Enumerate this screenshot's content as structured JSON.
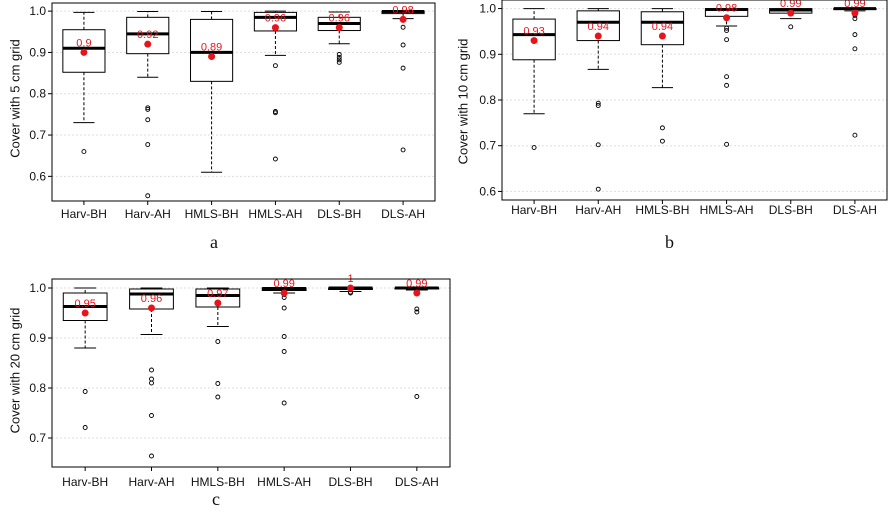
{
  "chart_data": [
    {
      "type": "box",
      "panel_letter": "a",
      "ylabel": "Cover with 5 cm grid",
      "ylim": [
        0.55,
        1.01
      ],
      "yticks": [
        "0.6",
        "0.7",
        "0.8",
        "0.9",
        "1.0"
      ],
      "ytick_values": [
        0.6,
        0.7,
        0.8,
        0.9,
        1.0
      ],
      "grid": true,
      "categories": [
        "Harv-BH",
        "Harv-AH",
        "HMLS-BH",
        "HMLS-AH",
        "DLS-BH",
        "DLS-AH"
      ],
      "boxes": [
        {
          "min": 0.73,
          "q1": 0.852,
          "median": 0.91,
          "q3": 0.955,
          "max": 0.997,
          "mean": 0.9,
          "mean_label": "0.9",
          "outliers": [
            0.66
          ]
        },
        {
          "min": 0.84,
          "q1": 0.897,
          "median": 0.945,
          "q3": 0.985,
          "max": 0.999,
          "mean": 0.92,
          "mean_label": "0.92",
          "outliers": [
            0.766,
            0.762,
            0.737,
            0.677,
            0.553
          ]
        },
        {
          "min": 0.61,
          "q1": 0.83,
          "median": 0.9,
          "q3": 0.98,
          "max": 0.999,
          "mean": 0.89,
          "mean_label": "0.89",
          "outliers": []
        },
        {
          "min": 0.893,
          "q1": 0.952,
          "median": 0.985,
          "q3": 0.997,
          "max": 1.0,
          "mean": 0.96,
          "mean_label": "0.96",
          "outliers": [
            0.868,
            0.757,
            0.754,
            0.642
          ]
        },
        {
          "min": 0.921,
          "q1": 0.953,
          "median": 0.97,
          "q3": 0.985,
          "max": 0.998,
          "mean": 0.96,
          "mean_label": "0.96",
          "outliers": [
            0.895,
            0.888,
            0.882,
            0.876
          ]
        },
        {
          "min": 0.982,
          "q1": 0.994,
          "median": 0.999,
          "q3": 1.0,
          "max": 1.0,
          "mean": 0.98,
          "mean_label": "0.98",
          "outliers": [
            0.978,
            0.961,
            0.918,
            0.862,
            0.664
          ]
        }
      ]
    },
    {
      "type": "box",
      "panel_letter": "b",
      "ylabel": "Cover with 10 cm grid",
      "ylim": [
        0.59,
        1.01
      ],
      "yticks": [
        "0.6",
        "0.7",
        "0.8",
        "0.9",
        "1.0"
      ],
      "ytick_values": [
        0.6,
        0.7,
        0.8,
        0.9,
        1.0
      ],
      "grid": true,
      "categories": [
        "Harv-BH",
        "Harv-AH",
        "HMLS-BH",
        "HMLS-AH",
        "DLS-BH",
        "DLS-AH"
      ],
      "boxes": [
        {
          "min": 0.77,
          "q1": 0.888,
          "median": 0.943,
          "q3": 0.977,
          "max": 1.0,
          "mean": 0.93,
          "mean_label": "0.93",
          "outliers": [
            0.696
          ]
        },
        {
          "min": 0.867,
          "q1": 0.93,
          "median": 0.97,
          "q3": 0.995,
          "max": 1.0,
          "mean": 0.94,
          "mean_label": "0.94",
          "outliers": [
            0.793,
            0.788,
            0.702,
            0.605
          ]
        },
        {
          "min": 0.827,
          "q1": 0.921,
          "median": 0.97,
          "q3": 0.993,
          "max": 1.0,
          "mean": 0.94,
          "mean_label": "0.94",
          "outliers": [
            0.739,
            0.71
          ]
        },
        {
          "min": 0.962,
          "q1": 0.983,
          "median": 0.998,
          "q3": 1.0,
          "max": 1.0,
          "mean": 0.98,
          "mean_label": "0.98",
          "outliers": [
            0.957,
            0.952,
            0.932,
            0.851,
            0.832,
            0.703
          ]
        },
        {
          "min": 0.978,
          "q1": 0.99,
          "median": 0.997,
          "q3": 1.0,
          "max": 1.0,
          "mean": 0.99,
          "mean_label": "0.99",
          "outliers": [
            0.96
          ]
        },
        {
          "min": 0.995,
          "q1": 0.998,
          "median": 1.0,
          "q3": 1.0,
          "max": 1.0,
          "mean": 0.99,
          "mean_label": "0.99",
          "outliers": [
            0.985,
            0.978,
            0.943,
            0.912,
            0.723
          ]
        }
      ]
    },
    {
      "type": "box",
      "panel_letter": "c",
      "ylabel": "Cover with 20 cm grid",
      "ylim": [
        0.65,
        1.01
      ],
      "yticks": [
        "0.7",
        "0.8",
        "0.9",
        "1.0"
      ],
      "ytick_values": [
        0.7,
        0.8,
        0.9,
        1.0
      ],
      "grid": true,
      "categories": [
        "Harv-BH",
        "Harv-AH",
        "HMLS-BH",
        "HMLS-AH",
        "DLS-BH",
        "DLS-AH"
      ],
      "boxes": [
        {
          "min": 0.88,
          "q1": 0.935,
          "median": 0.963,
          "q3": 0.99,
          "max": 1.0,
          "mean": 0.95,
          "mean_label": "0.95",
          "outliers": [
            0.793,
            0.721
          ]
        },
        {
          "min": 0.907,
          "q1": 0.958,
          "median": 0.988,
          "q3": 0.998,
          "max": 1.0,
          "mean": 0.96,
          "mean_label": "0.96",
          "outliers": [
            0.836,
            0.818,
            0.81,
            0.745,
            0.664
          ]
        },
        {
          "min": 0.923,
          "q1": 0.962,
          "median": 0.985,
          "q3": 0.998,
          "max": 1.0,
          "mean": 0.97,
          "mean_label": "0.97",
          "outliers": [
            0.893,
            0.809,
            0.782
          ]
        },
        {
          "min": 0.99,
          "q1": 0.995,
          "median": 0.999,
          "q3": 1.0,
          "max": 1.0,
          "mean": 0.99,
          "mean_label": "0.99",
          "outliers": [
            0.987,
            0.981,
            0.96,
            0.903,
            0.873,
            0.77
          ]
        },
        {
          "min": 0.993,
          "q1": 0.997,
          "median": 1.0,
          "q3": 1.0,
          "max": 1.0,
          "mean": 1.0,
          "mean_label": "1",
          "outliers": [
            0.992,
            0.99
          ]
        },
        {
          "min": 0.996,
          "q1": 0.999,
          "median": 1.0,
          "q3": 1.0,
          "max": 1.0,
          "mean": 0.99,
          "mean_label": "0.99",
          "outliers": [
            0.99,
            0.958,
            0.952,
            0.783
          ]
        }
      ]
    }
  ],
  "colors": {
    "mean_point": "#e8141c",
    "mean_label": "#e8141c",
    "box_line": "#000000",
    "gridline": "#dddddd"
  }
}
